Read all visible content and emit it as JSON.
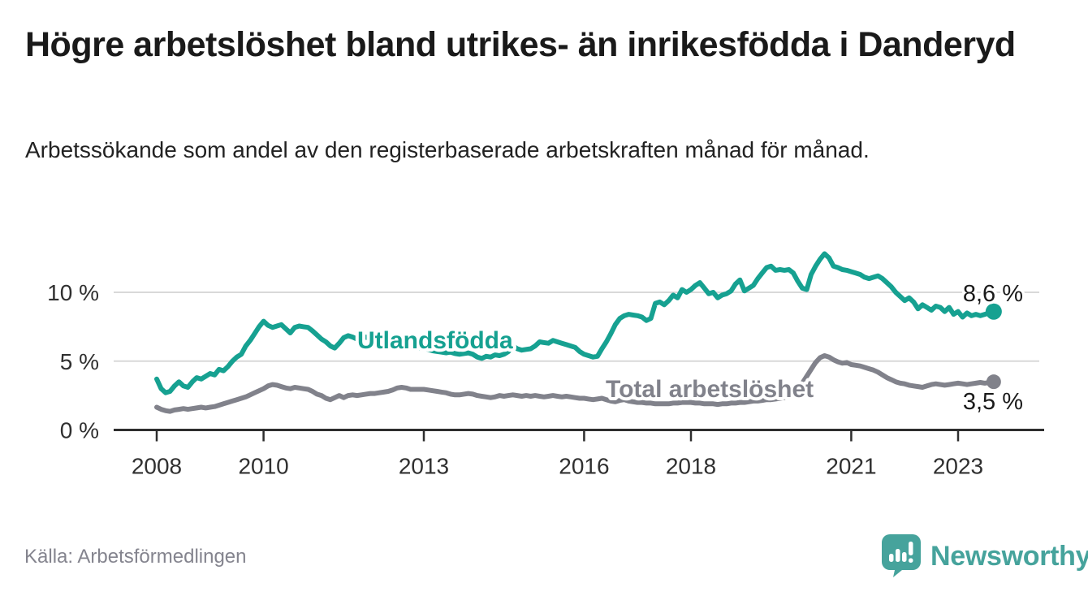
{
  "header": {
    "title": "Högre arbetslöshet bland utrikes- än inrikesfödda i Danderyd",
    "subtitle": "Arbetssökande som andel av den registerbaserade arbetskraften månad för månad."
  },
  "footer": {
    "source": "Källa: Arbetsförmedlingen",
    "brand": "Newsworthy"
  },
  "colors": {
    "accent_teal": "#16a191",
    "line_gray": "#81828b",
    "brand_teal": "#46a39c",
    "axis": "#2e2e2e",
    "gridline": "#d9d9d9",
    "text_dark": "#1a1a1a"
  },
  "chart_data": {
    "type": "line",
    "title": "Högre arbetslöshet bland utrikes- än inrikesfödda i Danderyd",
    "subtitle": "Arbetssökande som andel av den registerbaserade arbetskraften månad för månad.",
    "unit": "%",
    "grid": "horizontal",
    "legend_position": "inline-on-line",
    "x_start": "2008-01",
    "x_end": "2023-09",
    "x_interval": "monthly",
    "x_ticks": [
      2008,
      2010,
      2013,
      2016,
      2018,
      2021,
      2023
    ],
    "y_ticks": [
      0,
      5,
      10
    ],
    "y_tick_labels": [
      "0 %",
      "5 %",
      "10 %"
    ],
    "ylim": [
      0,
      13.5
    ],
    "series": [
      {
        "name": "Utlandsfödda",
        "color": "#16a191",
        "end_label": "8,6 %",
        "end_value": 8.6,
        "values": [
          3.7,
          3.0,
          2.7,
          2.8,
          3.2,
          3.5,
          3.2,
          3.1,
          3.5,
          3.8,
          3.7,
          3.9,
          4.1,
          4.0,
          4.4,
          4.3,
          4.6,
          5.0,
          5.3,
          5.5,
          6.1,
          6.5,
          7.0,
          7.5,
          7.9,
          7.6,
          7.45,
          7.55,
          7.65,
          7.35,
          7.05,
          7.45,
          7.55,
          7.5,
          7.45,
          7.2,
          6.9,
          6.6,
          6.4,
          6.1,
          5.95,
          6.3,
          6.7,
          6.85,
          6.75,
          6.6,
          6.65,
          6.75,
          6.6,
          6.55,
          6.45,
          6.5,
          6.4,
          6.3,
          6.25,
          6.3,
          6.2,
          6.1,
          6.0,
          5.95,
          5.9,
          5.85,
          5.75,
          5.7,
          5.65,
          5.6,
          5.65,
          5.55,
          5.5,
          5.55,
          5.6,
          5.5,
          5.3,
          5.2,
          5.35,
          5.3,
          5.45,
          5.4,
          5.5,
          5.7,
          6.1,
          5.9,
          5.8,
          5.85,
          5.9,
          6.1,
          6.4,
          6.35,
          6.3,
          6.5,
          6.4,
          6.3,
          6.2,
          6.1,
          6.0,
          5.7,
          5.5,
          5.4,
          5.3,
          5.35,
          5.9,
          6.4,
          7.0,
          7.65,
          8.1,
          8.3,
          8.4,
          8.35,
          8.3,
          8.2,
          7.95,
          8.1,
          9.2,
          9.3,
          9.1,
          9.4,
          9.8,
          9.6,
          10.2,
          10.0,
          10.2,
          10.5,
          10.7,
          10.3,
          9.9,
          10.0,
          9.6,
          9.8,
          9.9,
          10.1,
          10.6,
          10.9,
          10.1,
          10.3,
          10.5,
          11.0,
          11.4,
          11.8,
          11.9,
          11.6,
          11.65,
          11.6,
          11.65,
          11.4,
          10.8,
          10.3,
          10.2,
          11.3,
          11.9,
          12.4,
          12.8,
          12.5,
          11.9,
          11.8,
          11.65,
          11.6,
          11.5,
          11.4,
          11.3,
          11.1,
          11.0,
          11.1,
          11.2,
          11.0,
          10.7,
          10.4,
          10.0,
          9.7,
          9.4,
          9.6,
          9.3,
          8.8,
          9.1,
          8.9,
          8.7,
          9.0,
          8.9,
          8.6,
          8.9,
          8.4,
          8.6,
          8.2,
          8.5,
          8.3,
          8.4,
          8.3,
          8.4,
          8.5,
          8.6
        ]
      },
      {
        "name": "Total arbetslöshet",
        "color": "#81828b",
        "end_label": "3,5 %",
        "end_value": 3.5,
        "values": [
          1.65,
          1.5,
          1.4,
          1.35,
          1.45,
          1.5,
          1.55,
          1.5,
          1.55,
          1.6,
          1.65,
          1.6,
          1.65,
          1.7,
          1.8,
          1.9,
          2.0,
          2.1,
          2.2,
          2.3,
          2.4,
          2.55,
          2.7,
          2.85,
          3.0,
          3.2,
          3.3,
          3.25,
          3.15,
          3.05,
          3.0,
          3.1,
          3.05,
          3.0,
          2.95,
          2.8,
          2.6,
          2.5,
          2.3,
          2.2,
          2.35,
          2.5,
          2.35,
          2.5,
          2.55,
          2.5,
          2.55,
          2.6,
          2.65,
          2.65,
          2.7,
          2.75,
          2.8,
          2.9,
          3.05,
          3.1,
          3.05,
          2.95,
          2.95,
          2.95,
          2.95,
          2.9,
          2.85,
          2.8,
          2.75,
          2.7,
          2.6,
          2.55,
          2.55,
          2.6,
          2.65,
          2.6,
          2.5,
          2.45,
          2.4,
          2.35,
          2.4,
          2.5,
          2.45,
          2.5,
          2.55,
          2.5,
          2.45,
          2.5,
          2.45,
          2.5,
          2.45,
          2.4,
          2.45,
          2.5,
          2.45,
          2.4,
          2.45,
          2.4,
          2.35,
          2.3,
          2.3,
          2.25,
          2.2,
          2.25,
          2.3,
          2.2,
          2.1,
          2.05,
          2.15,
          2.2,
          2.1,
          2.05,
          2.0,
          2.0,
          1.95,
          1.95,
          1.9,
          1.9,
          1.9,
          1.9,
          1.95,
          1.95,
          2.0,
          2.0,
          2.0,
          1.95,
          1.95,
          1.9,
          1.9,
          1.9,
          1.85,
          1.9,
          1.9,
          1.95,
          1.95,
          2.0,
          2.0,
          2.05,
          2.1,
          2.1,
          2.15,
          2.2,
          2.2,
          2.25,
          2.3,
          2.35,
          2.4,
          2.5,
          2.9,
          3.4,
          3.9,
          4.4,
          4.9,
          5.25,
          5.4,
          5.3,
          5.1,
          4.95,
          4.85,
          4.9,
          4.75,
          4.7,
          4.65,
          4.55,
          4.45,
          4.35,
          4.2,
          4.0,
          3.8,
          3.65,
          3.5,
          3.4,
          3.35,
          3.25,
          3.2,
          3.15,
          3.1,
          3.2,
          3.3,
          3.35,
          3.3,
          3.25,
          3.3,
          3.35,
          3.4,
          3.35,
          3.3,
          3.35,
          3.4,
          3.45,
          3.4,
          3.45,
          3.5
        ]
      }
    ]
  }
}
